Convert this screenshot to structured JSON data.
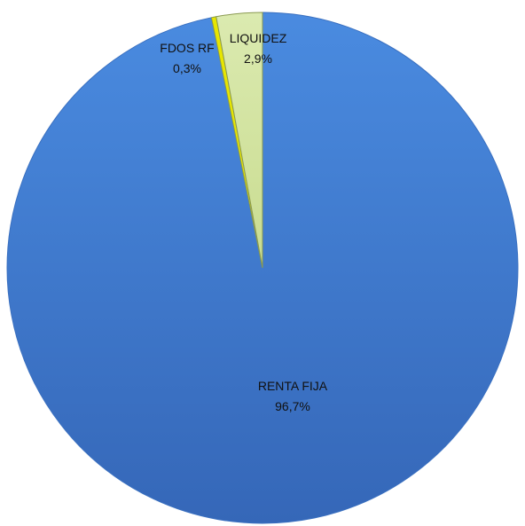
{
  "chart_data": {
    "type": "pie",
    "title": "",
    "start_angle_deg": 0,
    "direction": "clockwise",
    "slices": [
      {
        "label": "RENTA FIJA",
        "value": 96.7,
        "value_label": "96,7%",
        "color": "#3f7fd0"
      },
      {
        "label": "FDOS RF",
        "value": 0.3,
        "value_label": "0,3%",
        "color": "#e7e600"
      },
      {
        "label": "LIQUIDEZ",
        "value": 2.9,
        "value_label": "2,9%",
        "color": "#d6e6a3"
      }
    ]
  }
}
